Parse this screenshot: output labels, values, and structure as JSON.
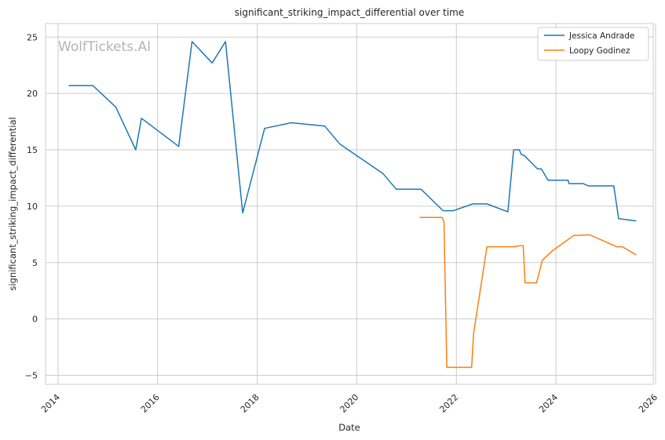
{
  "watermark": "WolfTickets.AI",
  "chart_data": {
    "type": "line",
    "title": "significant_striking_impact_differential over time",
    "xlabel": "Date",
    "ylabel": "significant_striking_impact_differential",
    "x_tick_labels": [
      "2014",
      "2016",
      "2018",
      "2020",
      "2022",
      "2024",
      "2026"
    ],
    "y_tick_labels": [
      "−5",
      "0",
      "5",
      "10",
      "15",
      "20",
      "25"
    ],
    "xlim": [
      "2013-10-01",
      "2025-12-15"
    ],
    "ylim": [
      -5.8,
      26.2
    ],
    "grid": true,
    "legend_position": "top-right",
    "series": [
      {
        "name": "Jessica Andrade",
        "color": "#1f77b4",
        "points": [
          [
            "2014-03-22",
            20.7
          ],
          [
            "2014-09-13",
            20.7
          ],
          [
            "2015-02-28",
            18.8
          ],
          [
            "2015-07-25",
            15.0
          ],
          [
            "2015-09-05",
            17.8
          ],
          [
            "2016-06-04",
            15.3
          ],
          [
            "2016-09-10",
            24.6
          ],
          [
            "2017-02-04",
            22.7
          ],
          [
            "2017-05-13",
            24.6
          ],
          [
            "2017-09-16",
            9.4
          ],
          [
            "2018-02-24",
            16.9
          ],
          [
            "2018-09-08",
            17.4
          ],
          [
            "2019-05-11",
            17.1
          ],
          [
            "2019-08-31",
            15.5
          ],
          [
            "2020-07-11",
            12.9
          ],
          [
            "2020-10-17",
            11.5
          ],
          [
            "2021-04-17",
            11.5
          ],
          [
            "2021-09-25",
            9.6
          ],
          [
            "2021-12-11",
            9.6
          ],
          [
            "2022-04-30",
            10.2
          ],
          [
            "2022-08-13",
            10.2
          ],
          [
            "2023-01-14",
            9.5
          ],
          [
            "2023-02-25",
            15.0
          ],
          [
            "2023-04-08",
            15.0
          ],
          [
            "2023-04-22",
            14.6
          ],
          [
            "2023-05-13",
            14.5
          ],
          [
            "2023-08-19",
            13.3
          ],
          [
            "2023-09-16",
            13.3
          ],
          [
            "2023-11-04",
            12.3
          ],
          [
            "2024-03-30",
            12.3
          ],
          [
            "2024-04-06",
            12.0
          ],
          [
            "2024-07-20",
            12.0
          ],
          [
            "2024-08-24",
            11.8
          ],
          [
            "2025-03-01",
            11.8
          ],
          [
            "2025-04-05",
            8.9
          ],
          [
            "2025-08-09",
            8.7
          ]
        ]
      },
      {
        "name": "Loopy Godinez",
        "color": "#ff7f0e",
        "points": [
          [
            "2021-04-10",
            9.0
          ],
          [
            "2021-09-18",
            9.0
          ],
          [
            "2021-10-02",
            8.6
          ],
          [
            "2021-10-23",
            -4.3
          ],
          [
            "2022-04-23",
            -4.3
          ],
          [
            "2022-05-07",
            -1.3
          ],
          [
            "2022-08-13",
            6.4
          ],
          [
            "2023-02-25",
            6.4
          ],
          [
            "2023-04-15",
            6.5
          ],
          [
            "2023-05-06",
            6.5
          ],
          [
            "2023-05-20",
            3.2
          ],
          [
            "2023-08-12",
            3.2
          ],
          [
            "2023-09-23",
            5.2
          ],
          [
            "2023-12-02",
            6.0
          ],
          [
            "2024-05-11",
            7.4
          ],
          [
            "2024-09-07",
            7.45
          ],
          [
            "2025-03-22",
            6.4
          ],
          [
            "2025-05-03",
            6.4
          ],
          [
            "2025-08-09",
            5.7
          ]
        ]
      }
    ]
  }
}
